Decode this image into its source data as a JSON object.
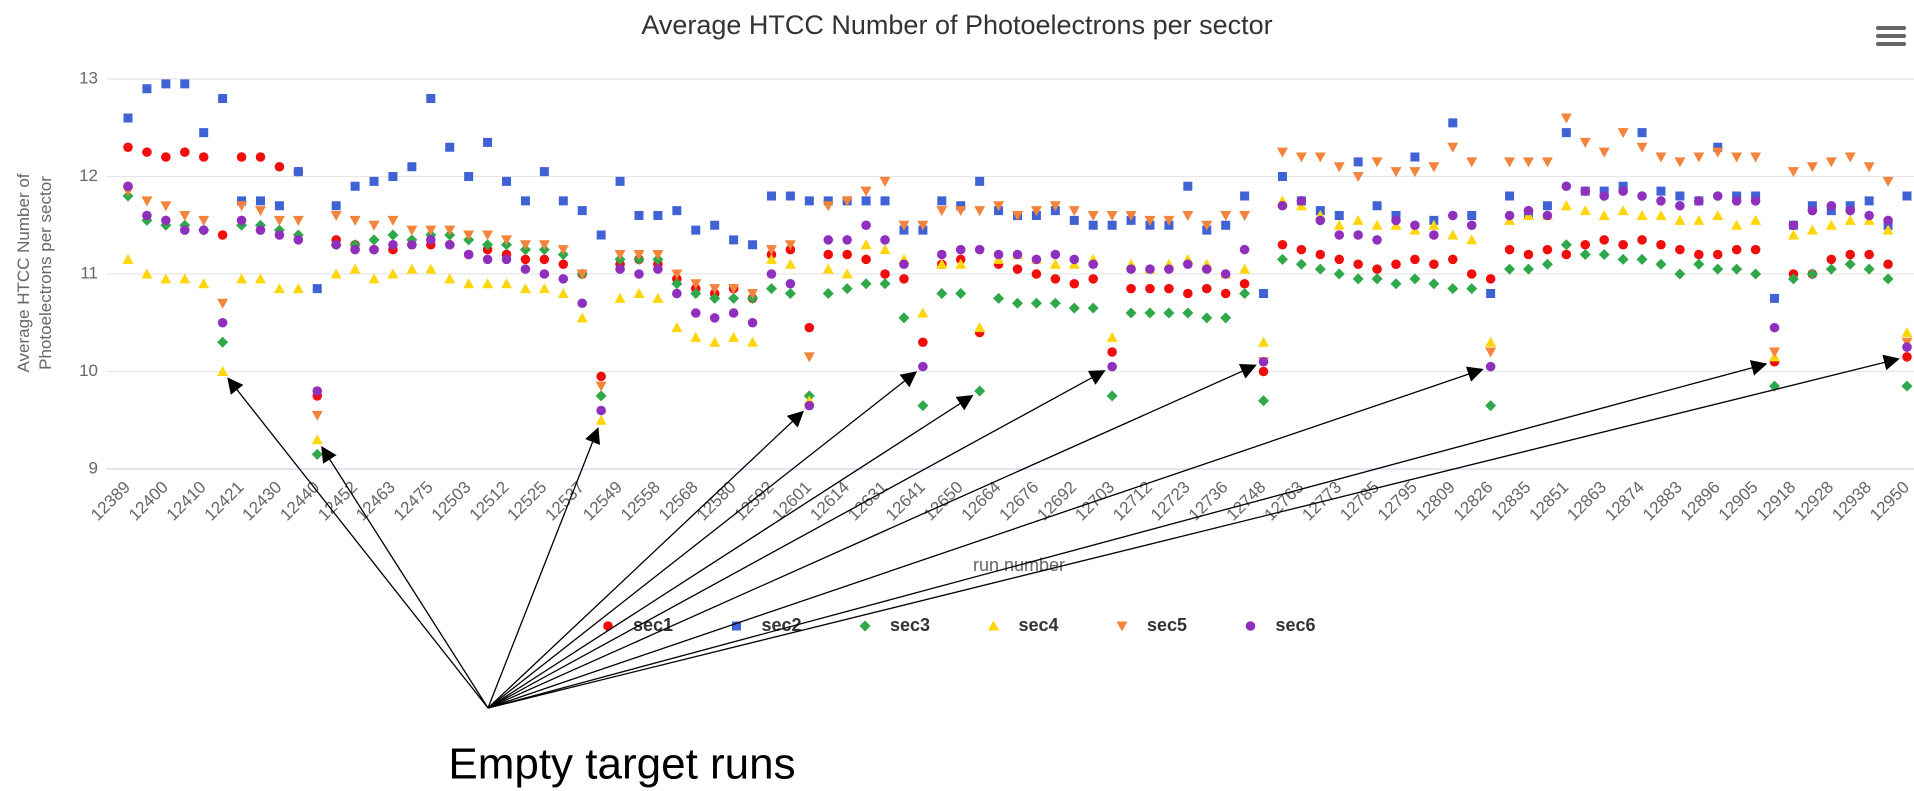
{
  "chart_data": {
    "type": "scatter",
    "title": "Average HTCC Number of Photoelectrons per sector",
    "xlabel": "run number",
    "ylabel": "Average HTCC Number of Photoelectrons per sector",
    "annotation": "Empty target runs",
    "categories": [
      "12389",
      null,
      "12400",
      null,
      "12410",
      null,
      "12421",
      null,
      "12430",
      null,
      "12440",
      null,
      "12452",
      null,
      "12463",
      null,
      "12475",
      null,
      "12503",
      null,
      "12512",
      null,
      "12525",
      null,
      "12537",
      null,
      "12549",
      null,
      "12558",
      null,
      "12568",
      null,
      "12580",
      null,
      "12592",
      null,
      "12601",
      null,
      "12614",
      null,
      "12631",
      null,
      "12641",
      null,
      "12650",
      null,
      "12664",
      null,
      "12676",
      null,
      "12692",
      null,
      "12703",
      null,
      "12712",
      null,
      "12723",
      null,
      "12736",
      null,
      "12748",
      null,
      "12763",
      null,
      "12773",
      null,
      "12785",
      null,
      "12795",
      null,
      "12809",
      null,
      "12826",
      null,
      "12835",
      null,
      "12851",
      null,
      "12863",
      null,
      "12874",
      null,
      "12883",
      null,
      "12896",
      null,
      "12905",
      null,
      "12918",
      null,
      "12928",
      null,
      "12938",
      null,
      "12950"
    ],
    "ylim": [
      9,
      13
    ],
    "yticks": [
      9,
      10,
      11,
      12,
      13
    ],
    "grid": true,
    "legend": "bottom",
    "series": [
      {
        "name": "sec1",
        "color": "#f20d0d",
        "marker": "circle",
        "values": [
          12.3,
          12.25,
          12.2,
          12.25,
          12.2,
          11.4,
          12.2,
          12.2,
          12.1,
          12.05,
          9.75,
          11.35,
          11.3,
          11.25,
          11.25,
          11.3,
          11.3,
          11.3,
          11.2,
          11.25,
          11.2,
          11.15,
          11.15,
          11.1,
          11.0,
          9.95,
          11.1,
          11.15,
          11.1,
          10.95,
          10.85,
          10.8,
          10.85,
          10.75,
          11.2,
          11.25,
          10.45,
          11.2,
          11.2,
          11.15,
          11.0,
          10.95,
          10.3,
          11.1,
          11.15,
          10.4,
          11.1,
          11.05,
          11.0,
          10.95,
          10.9,
          10.95,
          10.2,
          10.85,
          10.85,
          10.85,
          10.8,
          10.85,
          10.8,
          10.9,
          10.0,
          11.3,
          11.25,
          11.2,
          11.15,
          11.1,
          11.05,
          11.1,
          11.15,
          11.1,
          11.15,
          11.0,
          10.95,
          11.25,
          11.2,
          11.25,
          11.2,
          11.3,
          11.35,
          11.3,
          11.35,
          11.3,
          11.25,
          11.2,
          11.2,
          11.25,
          11.25,
          10.1,
          11.0,
          11.0,
          11.15,
          11.2,
          11.2,
          11.1,
          10.15
        ]
      },
      {
        "name": "sec2",
        "color": "#3f62d4",
        "marker": "square",
        "values": [
          12.6,
          12.9,
          12.95,
          12.95,
          12.45,
          12.8,
          11.75,
          11.75,
          11.7,
          12.05,
          10.85,
          11.7,
          11.9,
          11.95,
          12.0,
          12.1,
          12.8,
          12.3,
          12.0,
          12.35,
          11.95,
          11.75,
          12.05,
          11.75,
          11.65,
          11.4,
          11.95,
          11.6,
          11.6,
          11.65,
          11.45,
          11.5,
          11.35,
          11.3,
          11.8,
          11.8,
          11.75,
          11.75,
          11.75,
          11.75,
          11.75,
          11.45,
          11.45,
          11.75,
          11.7,
          11.95,
          11.65,
          11.6,
          11.6,
          11.65,
          11.55,
          11.5,
          11.5,
          11.55,
          11.5,
          11.5,
          11.9,
          11.45,
          11.5,
          11.8,
          10.8,
          12.0,
          11.75,
          11.65,
          11.6,
          12.15,
          11.7,
          11.6,
          12.2,
          11.55,
          12.55,
          11.6,
          10.8,
          11.8,
          11.6,
          11.7,
          12.45,
          11.85,
          11.85,
          11.9,
          12.45,
          11.85,
          11.8,
          11.75,
          12.3,
          11.8,
          11.8,
          10.75,
          11.5,
          11.7,
          11.65,
          11.7,
          11.75,
          11.5,
          11.8
        ]
      },
      {
        "name": "sec3",
        "color": "#2fa84a",
        "marker": "diamond",
        "values": [
          11.8,
          11.55,
          11.5,
          11.5,
          11.45,
          10.3,
          11.5,
          11.5,
          11.45,
          11.4,
          9.15,
          11.3,
          11.3,
          11.35,
          11.4,
          11.35,
          11.4,
          11.4,
          11.35,
          11.3,
          11.3,
          11.25,
          11.25,
          11.2,
          11.0,
          9.75,
          11.15,
          11.15,
          11.15,
          10.9,
          10.8,
          10.75,
          10.75,
          10.75,
          10.85,
          10.8,
          9.75,
          10.8,
          10.85,
          10.9,
          10.9,
          10.55,
          9.65,
          10.8,
          10.8,
          9.8,
          10.75,
          10.7,
          10.7,
          10.7,
          10.65,
          10.65,
          9.75,
          10.6,
          10.6,
          10.6,
          10.6,
          10.55,
          10.55,
          10.8,
          9.7,
          11.15,
          11.1,
          11.05,
          11.0,
          10.95,
          10.95,
          10.9,
          10.95,
          10.9,
          10.85,
          10.85,
          9.65,
          11.05,
          11.05,
          11.1,
          11.3,
          11.2,
          11.2,
          11.15,
          11.15,
          11.1,
          11.0,
          11.1,
          11.05,
          11.05,
          11.0,
          9.85,
          10.95,
          11.0,
          11.05,
          11.1,
          11.05,
          10.95,
          9.85
        ]
      },
      {
        "name": "sec4",
        "color": "#ffd60a",
        "marker": "triangle",
        "values": [
          11.15,
          11.0,
          10.95,
          10.95,
          10.9,
          10.0,
          10.95,
          10.95,
          10.85,
          10.85,
          9.3,
          11.0,
          11.05,
          10.95,
          11.0,
          11.05,
          11.05,
          10.95,
          10.9,
          10.9,
          10.9,
          10.85,
          10.85,
          10.8,
          10.55,
          9.5,
          10.75,
          10.8,
          10.75,
          10.45,
          10.35,
          10.3,
          10.35,
          10.3,
          11.15,
          11.1,
          9.7,
          11.05,
          11.0,
          11.3,
          11.25,
          11.15,
          10.6,
          11.1,
          11.1,
          10.45,
          11.15,
          11.2,
          11.15,
          11.1,
          11.1,
          11.15,
          10.35,
          11.1,
          11.05,
          11.1,
          11.15,
          11.1,
          11.0,
          11.05,
          10.3,
          11.75,
          11.7,
          11.6,
          11.5,
          11.55,
          11.5,
          11.5,
          11.45,
          11.5,
          11.4,
          11.35,
          10.3,
          11.55,
          11.6,
          11.6,
          11.7,
          11.65,
          11.6,
          11.65,
          11.6,
          11.6,
          11.55,
          11.55,
          11.6,
          11.5,
          11.55,
          10.15,
          11.4,
          11.45,
          11.5,
          11.55,
          11.55,
          11.45,
          10.4
        ]
      },
      {
        "name": "sec5",
        "color": "#f4843c",
        "marker": "triangle-down",
        "values": [
          11.85,
          11.75,
          11.7,
          11.6,
          11.55,
          10.7,
          11.7,
          11.65,
          11.55,
          11.55,
          9.55,
          11.6,
          11.55,
          11.5,
          11.55,
          11.45,
          11.45,
          11.45,
          11.4,
          11.4,
          11.35,
          11.3,
          11.3,
          11.25,
          11.0,
          9.85,
          11.2,
          11.2,
          11.2,
          11.0,
          10.9,
          10.85,
          10.85,
          10.8,
          11.25,
          11.3,
          10.15,
          11.7,
          11.75,
          11.85,
          11.95,
          11.5,
          11.5,
          11.65,
          11.65,
          11.65,
          11.7,
          11.6,
          11.65,
          11.7,
          11.65,
          11.6,
          11.6,
          11.6,
          11.55,
          11.55,
          11.6,
          11.5,
          11.6,
          11.6,
          10.1,
          12.25,
          12.2,
          12.2,
          12.1,
          12.0,
          12.15,
          12.05,
          12.05,
          12.1,
          12.3,
          12.15,
          10.2,
          12.15,
          12.15,
          12.15,
          12.6,
          12.35,
          12.25,
          12.45,
          12.3,
          12.2,
          12.15,
          12.2,
          12.25,
          12.2,
          12.2,
          10.2,
          12.05,
          12.1,
          12.15,
          12.2,
          12.1,
          11.95,
          10.3
        ]
      },
      {
        "name": "sec6",
        "color": "#8f2fbd",
        "marker": "circle",
        "values": [
          11.9,
          11.6,
          11.55,
          11.45,
          11.45,
          10.5,
          11.55,
          11.45,
          11.4,
          11.35,
          9.8,
          11.3,
          11.25,
          11.25,
          11.3,
          11.3,
          11.35,
          11.3,
          11.2,
          11.15,
          11.15,
          11.05,
          11.0,
          10.95,
          10.7,
          9.6,
          11.05,
          11.0,
          11.05,
          10.8,
          10.6,
          10.55,
          10.6,
          10.5,
          11.0,
          10.9,
          9.65,
          11.35,
          11.35,
          11.5,
          11.35,
          11.1,
          10.05,
          11.2,
          11.25,
          11.25,
          11.2,
          11.2,
          11.15,
          11.2,
          11.15,
          11.1,
          10.05,
          11.05,
          11.05,
          11.05,
          11.1,
          11.05,
          11.0,
          11.25,
          10.1,
          11.7,
          11.75,
          11.55,
          11.4,
          11.4,
          11.35,
          11.55,
          11.5,
          11.4,
          11.6,
          11.5,
          10.05,
          11.6,
          11.65,
          11.6,
          11.9,
          11.85,
          11.8,
          11.85,
          11.8,
          11.75,
          11.7,
          11.75,
          11.8,
          11.75,
          11.75,
          10.45,
          11.5,
          11.65,
          11.7,
          11.65,
          11.6,
          11.55,
          10.25
        ]
      }
    ]
  }
}
